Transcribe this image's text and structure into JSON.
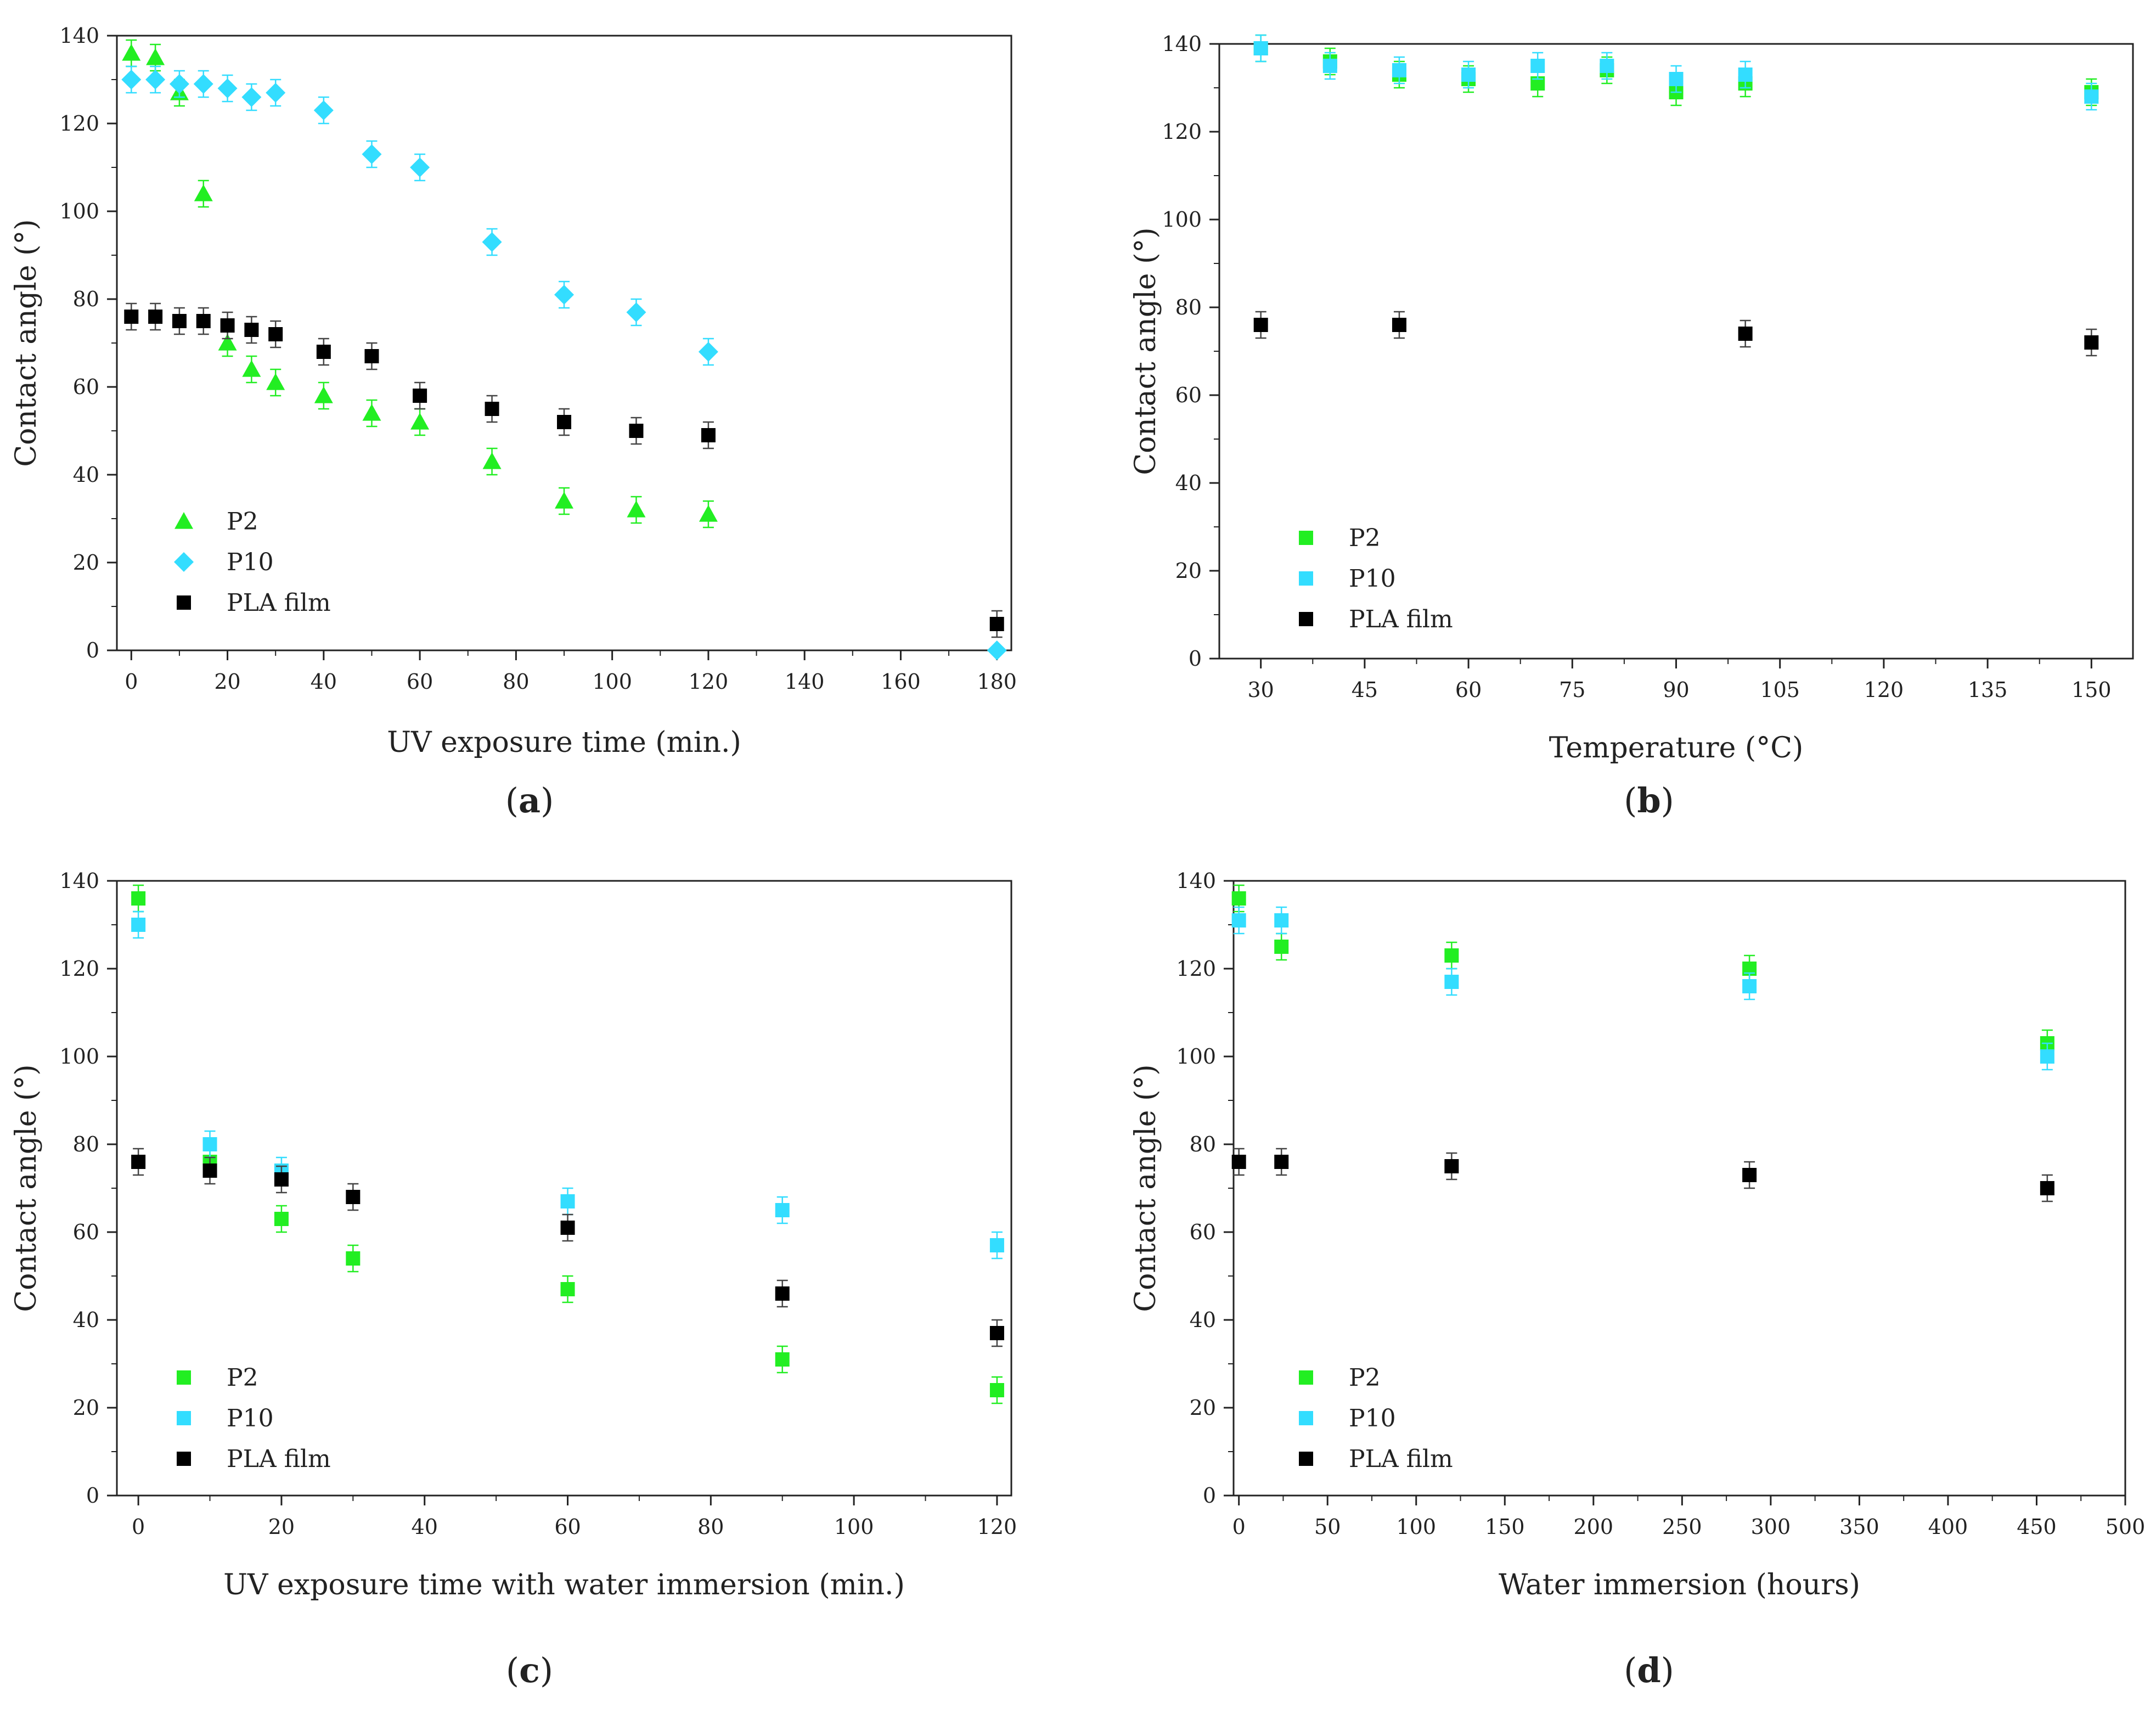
{
  "chart_data": [
    {
      "panel": "a",
      "caption": "(a)",
      "caption_open": "(",
      "caption_letter": "a",
      "caption_close": ")",
      "type": "scatter",
      "xlabel": "UV exposure time (min.)",
      "ylabel": "Contact angle (°)",
      "xlim": [
        -3,
        183
      ],
      "ylim": [
        0,
        140
      ],
      "xticks": [
        0,
        20,
        40,
        60,
        80,
        100,
        120,
        140,
        160,
        180
      ],
      "yticks": [
        0,
        20,
        40,
        60,
        80,
        100,
        120,
        140
      ],
      "legend_position": "bottom-left",
      "series": [
        {
          "name": "P2",
          "marker": "triangle",
          "color": "#22ee22",
          "x": [
            0,
            5,
            10,
            15,
            20,
            25,
            30,
            40,
            50,
            60,
            75,
            90,
            105,
            120
          ],
          "y": [
            136,
            135,
            127,
            104,
            70,
            64,
            61,
            58,
            54,
            52,
            43,
            34,
            32,
            31
          ],
          "err": [
            3,
            3,
            3,
            3,
            3,
            3,
            3,
            3,
            3,
            3,
            3,
            3,
            3,
            3
          ]
        },
        {
          "name": "P10",
          "marker": "diamond",
          "color": "#33ddff",
          "x": [
            0,
            5,
            10,
            15,
            20,
            25,
            30,
            40,
            50,
            60,
            75,
            90,
            105,
            120,
            180
          ],
          "y": [
            130,
            130,
            129,
            129,
            128,
            126,
            127,
            123,
            113,
            110,
            93,
            81,
            77,
            68,
            0
          ],
          "err": [
            3,
            3,
            3,
            3,
            3,
            3,
            3,
            3,
            3,
            3,
            3,
            3,
            3,
            3,
            0
          ]
        },
        {
          "name": "PLA film",
          "marker": "square",
          "color": "#000000",
          "x": [
            0,
            5,
            10,
            15,
            20,
            25,
            30,
            40,
            50,
            60,
            75,
            90,
            105,
            120,
            180
          ],
          "y": [
            76,
            76,
            75,
            75,
            74,
            73,
            72,
            68,
            67,
            58,
            55,
            52,
            50,
            49,
            6
          ],
          "err": [
            3,
            3,
            3,
            3,
            3,
            3,
            3,
            3,
            3,
            3,
            3,
            3,
            3,
            3,
            3
          ]
        }
      ]
    },
    {
      "panel": "b",
      "caption": "(b)",
      "caption_open": "(",
      "caption_letter": "b",
      "caption_close": ")",
      "type": "scatter",
      "xlabel": "Temperature (°C)",
      "ylabel": "Contact angle (°)",
      "xlim": [
        24,
        156
      ],
      "ylim": [
        0,
        140
      ],
      "xticks": [
        30,
        45,
        60,
        75,
        90,
        105,
        120,
        135,
        150
      ],
      "yticks": [
        0,
        20,
        40,
        60,
        80,
        100,
        120,
        140
      ],
      "legend_position": "bottom-left",
      "series": [
        {
          "name": "P2",
          "marker": "square",
          "color": "#22ee22",
          "x": [
            30,
            40,
            50,
            60,
            70,
            80,
            90,
            100,
            150
          ],
          "y": [
            139,
            136,
            133,
            132,
            131,
            134,
            129,
            131,
            129
          ],
          "err": [
            3,
            3,
            3,
            3,
            3,
            3,
            3,
            3,
            3
          ]
        },
        {
          "name": "P10",
          "marker": "square",
          "color": "#33ddff",
          "x": [
            30,
            40,
            50,
            60,
            70,
            80,
            90,
            100,
            150
          ],
          "y": [
            139,
            135,
            134,
            133,
            135,
            135,
            132,
            133,
            128
          ],
          "err": [
            3,
            3,
            3,
            3,
            3,
            3,
            3,
            3,
            3
          ]
        },
        {
          "name": "PLA film",
          "marker": "square",
          "color": "#000000",
          "x": [
            30,
            50,
            100,
            150
          ],
          "y": [
            76,
            76,
            74,
            72
          ],
          "err": [
            3,
            3,
            3,
            3
          ]
        }
      ]
    },
    {
      "panel": "c",
      "caption": "(c)",
      "caption_open": "(",
      "caption_letter": "c",
      "caption_close": ")",
      "type": "scatter",
      "xlabel": "UV exposure time with water immersion (min.)",
      "ylabel": "Contact angle (°)",
      "xlim": [
        -3,
        122
      ],
      "ylim": [
        0,
        140
      ],
      "xticks": [
        0,
        20,
        40,
        60,
        80,
        100,
        120
      ],
      "yticks": [
        0,
        20,
        40,
        60,
        80,
        100,
        120,
        140
      ],
      "legend_position": "bottom-left",
      "series": [
        {
          "name": "P2",
          "marker": "square",
          "color": "#22ee22",
          "x": [
            0,
            10,
            20,
            30,
            60,
            90,
            120
          ],
          "y": [
            136,
            76,
            63,
            54,
            47,
            31,
            24
          ],
          "err": [
            3,
            3,
            3,
            3,
            3,
            3,
            3
          ]
        },
        {
          "name": "P10",
          "marker": "square",
          "color": "#33ddff",
          "x": [
            0,
            10,
            20,
            60,
            90,
            120
          ],
          "y": [
            130,
            80,
            74,
            67,
            65,
            57
          ],
          "err": [
            3,
            3,
            3,
            3,
            3,
            3
          ]
        },
        {
          "name": "PLA film",
          "marker": "square",
          "color": "#000000",
          "x": [
            0,
            10,
            20,
            30,
            60,
            90,
            120
          ],
          "y": [
            76,
            74,
            72,
            68,
            61,
            46,
            37
          ],
          "err": [
            3,
            3,
            3,
            3,
            3,
            3,
            3
          ]
        }
      ]
    },
    {
      "panel": "d",
      "caption": "(d)",
      "caption_open": "(",
      "caption_letter": "d",
      "caption_close": ")",
      "type": "scatter",
      "xlabel": "Water immersion (hours)",
      "ylabel": "Contact angle (°)",
      "xlim": [
        -3,
        500
      ],
      "ylim": [
        0,
        140
      ],
      "xticks": [
        0,
        50,
        100,
        150,
        200,
        250,
        300,
        350,
        400,
        450,
        500
      ],
      "yticks": [
        0,
        20,
        40,
        60,
        80,
        100,
        120,
        140
      ],
      "legend_position": "bottom-left",
      "series": [
        {
          "name": "P2",
          "marker": "square",
          "color": "#22ee22",
          "x": [
            0,
            24,
            120,
            288,
            456
          ],
          "y": [
            136,
            125,
            123,
            120,
            103
          ],
          "err": [
            3,
            3,
            3,
            3,
            3
          ]
        },
        {
          "name": "P10",
          "marker": "square",
          "color": "#33ddff",
          "x": [
            0,
            24,
            120,
            288,
            456
          ],
          "y": [
            131,
            131,
            117,
            116,
            100
          ],
          "err": [
            3,
            3,
            3,
            3,
            3
          ]
        },
        {
          "name": "PLA film",
          "marker": "square",
          "color": "#000000",
          "x": [
            0,
            24,
            120,
            288,
            456
          ],
          "y": [
            76,
            76,
            75,
            73,
            70
          ],
          "err": [
            3,
            3,
            3,
            3,
            3
          ]
        }
      ]
    }
  ]
}
